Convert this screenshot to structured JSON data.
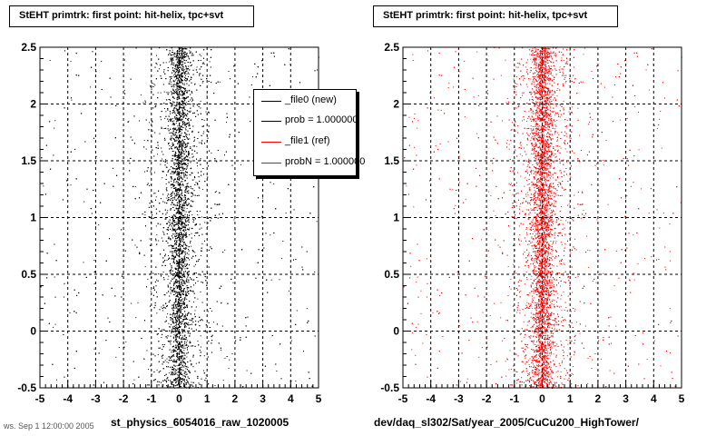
{
  "chart_data": [
    {
      "type": "scatter",
      "title": "StEHT primtrk: first point: hit-helix, tpc+svt",
      "xlabel": "st_physics_6054016_raw_1020005",
      "ylabel": "",
      "xlim": [
        -5,
        5
      ],
      "ylim": [
        -0.5,
        2.5
      ],
      "xticks": [
        "-5",
        "-4",
        "-3",
        "-2",
        "-1",
        "0",
        "1",
        "2",
        "3",
        "4",
        "5"
      ],
      "yticks": [
        "-0.5",
        "0",
        "0.5",
        "1",
        "1.5",
        "2",
        "2.5"
      ],
      "grid": true,
      "marker_color": "#000000",
      "distribution": {
        "x_center": 0.0,
        "x_core_width": 0.3,
        "x_halo_width": 1.0,
        "y_range": [
          -0.5,
          2.5
        ]
      },
      "series": [
        {
          "name": "_file0 (new)",
          "color": "#000000"
        },
        {
          "name": "prob = 1.000000",
          "color": "#000000"
        },
        {
          "name": "_file1 (ref)",
          "color": "#ff0000"
        },
        {
          "name": "probN = 1.000000",
          "color": "#ff0000"
        }
      ],
      "legend": "top-right"
    },
    {
      "type": "scatter",
      "title": "StEHT primtrk: first point: hit-helix, tpc+svt",
      "xlabel": "dev/daq_sl302/Sat/year_2005/CuCu200_HighTower/",
      "ylabel": "",
      "xlim": [
        -5,
        5
      ],
      "ylim": [
        -0.5,
        2.5
      ],
      "xticks": [
        "-5",
        "-4",
        "-3",
        "-2",
        "-1",
        "0",
        "1",
        "2",
        "3",
        "4",
        "5"
      ],
      "yticks": [
        "-0.5",
        "0",
        "0.5",
        "1",
        "1.5",
        "2",
        "2.5"
      ],
      "grid": true,
      "marker_color": "#ff0000",
      "distribution": {
        "x_center": 0.0,
        "x_core_width": 0.3,
        "x_halo_width": 1.0,
        "y_range": [
          -0.5,
          2.5
        ]
      }
    }
  ],
  "footer": "ws. Sep 1 12:00:00 2005"
}
